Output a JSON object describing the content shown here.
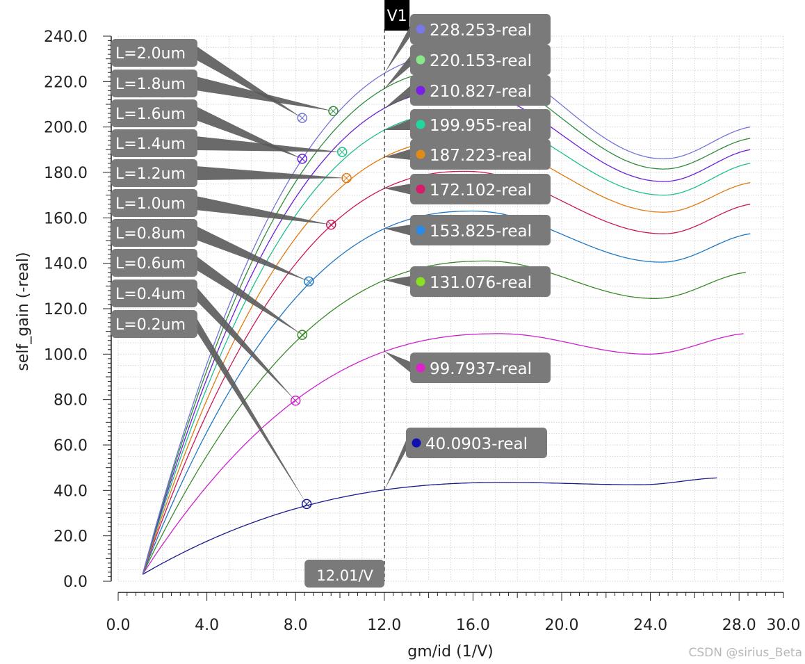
{
  "chart_data": {
    "type": "line",
    "title": "",
    "xlabel": "gm/id (1/V)",
    "ylabel": "self_gain (-real)",
    "xlim": [
      0,
      30
    ],
    "ylim": [
      0,
      240
    ],
    "grid": true,
    "x_ticks": [
      "0.0",
      "4.0",
      "8.0",
      "12.0",
      "16.0",
      "20.0",
      "24.0",
      "28.0",
      "30.0"
    ],
    "y_ticks": [
      "0.0",
      "20.0",
      "40.0",
      "60.0",
      "80.0",
      "100.0",
      "120.0",
      "140.0",
      "160.0",
      "180.0",
      "200.0",
      "220.0",
      "240.0"
    ],
    "cursor": {
      "name": "V1",
      "x": 12.01,
      "x_label": "12.01/V"
    },
    "series": [
      {
        "name": "L=0.2um",
        "color": "#1a1a8c",
        "x_start": 1.1,
        "x_end": 27.0,
        "peak_x": 17.5,
        "peak_y": 43.5,
        "dip_x": 23.5,
        "dip_y": 42.5,
        "end_y": 45.5,
        "marker": [
          8.5,
          34.0
        ],
        "cursor_value": "40.0903-real"
      },
      {
        "name": "L=0.4um",
        "color": "#cc22cc",
        "x_start": 1.1,
        "x_end": 28.2,
        "peak_x": 17.2,
        "peak_y": 109.0,
        "dip_x": 23.9,
        "dip_y": 100.0,
        "end_y": 109.0,
        "marker": [
          8.0,
          79.5
        ],
        "cursor_value": "99.7937-real"
      },
      {
        "name": "L=0.6um",
        "color": "#3a8a2a",
        "x_start": 1.1,
        "x_end": 28.3,
        "peak_x": 16.6,
        "peak_y": 141.0,
        "dip_x": 24.2,
        "dip_y": 124.5,
        "end_y": 136.0,
        "marker": [
          8.3,
          108.5
        ],
        "cursor_value": "131.076-real"
      },
      {
        "name": "L=0.8um",
        "color": "#1f77c4",
        "x_start": 1.1,
        "x_end": 28.5,
        "peak_x": 16.0,
        "peak_y": 163.0,
        "dip_x": 24.5,
        "dip_y": 140.5,
        "end_y": 153.0,
        "marker": [
          8.6,
          132.0
        ],
        "cursor_value": "153.825-real"
      },
      {
        "name": "L=1.0um",
        "color": "#c8185a",
        "x_start": 1.1,
        "x_end": 28.5,
        "peak_x": 15.7,
        "peak_y": 180.5,
        "dip_x": 24.6,
        "dip_y": 153.0,
        "end_y": 166.0,
        "marker": [
          9.6,
          157.0
        ],
        "cursor_value": "172.102-real"
      },
      {
        "name": "L=1.2um",
        "color": "#e07a10",
        "x_start": 1.1,
        "x_end": 28.5,
        "peak_x": 15.6,
        "peak_y": 194.5,
        "dip_x": 24.6,
        "dip_y": 162.5,
        "end_y": 175.5,
        "marker": [
          10.3,
          177.5
        ],
        "cursor_value": "187.223-real"
      },
      {
        "name": "L=1.4um",
        "color": "#1fbf8c",
        "x_start": 1.1,
        "x_end": 28.5,
        "peak_x": 15.5,
        "peak_y": 206.5,
        "dip_x": 24.6,
        "dip_y": 170.0,
        "end_y": 184.0,
        "marker": [
          10.1,
          189.0
        ],
        "cursor_value": "199.955-real"
      },
      {
        "name": "L=1.6um",
        "color": "#6a1fd8",
        "x_start": 1.1,
        "x_end": 28.5,
        "peak_x": 15.5,
        "peak_y": 216.5,
        "dip_x": 24.6,
        "dip_y": 176.0,
        "end_y": 190.0,
        "marker": [
          8.3,
          186.0
        ],
        "cursor_value": "210.827-real"
      },
      {
        "name": "L=1.8um",
        "color": "#2e8c3a",
        "x_start": 1.1,
        "x_end": 28.5,
        "peak_x": 15.5,
        "peak_y": 225.5,
        "dip_x": 24.6,
        "dip_y": 181.5,
        "end_y": 195.0,
        "marker": [
          9.7,
          207.0
        ],
        "cursor_value": "220.153-real"
      },
      {
        "name": "L=2.0um",
        "color": "#7474d8",
        "x_start": 1.1,
        "x_end": 28.5,
        "peak_x": 15.5,
        "peak_y": 232.5,
        "dip_x": 24.6,
        "dip_y": 186.0,
        "end_y": 200.0,
        "marker": [
          8.3,
          204.0
        ],
        "cursor_value": "228.253-real"
      }
    ],
    "value_labels": [
      {
        "text": "228.253-real",
        "dot_color": "#7878e8",
        "series": "L=2.0um"
      },
      {
        "text": "220.153-real",
        "dot_color": "#88e888",
        "series": "L=1.8um"
      },
      {
        "text": "210.827-real",
        "dot_color": "#7a1fe8",
        "series": "L=1.6um"
      },
      {
        "text": "199.955-real",
        "dot_color": "#1fd8a0",
        "series": "L=1.4um"
      },
      {
        "text": "187.223-real",
        "dot_color": "#e08a18",
        "series": "L=1.2um"
      },
      {
        "text": "172.102-real",
        "dot_color": "#d81a6a",
        "series": "L=1.0um"
      },
      {
        "text": "153.825-real",
        "dot_color": "#2a8ae8",
        "series": "L=0.8um"
      },
      {
        "text": "131.076-real",
        "dot_color": "#88e020",
        "series": "L=0.6um"
      },
      {
        "text": "99.7937-real",
        "dot_color": "#e020c8",
        "series": "L=0.4um"
      },
      {
        "text": "40.0903-real",
        "dot_color": "#1010b0",
        "series": "L=0.2um"
      }
    ]
  },
  "watermark": "CSDN @sirius_Beta"
}
